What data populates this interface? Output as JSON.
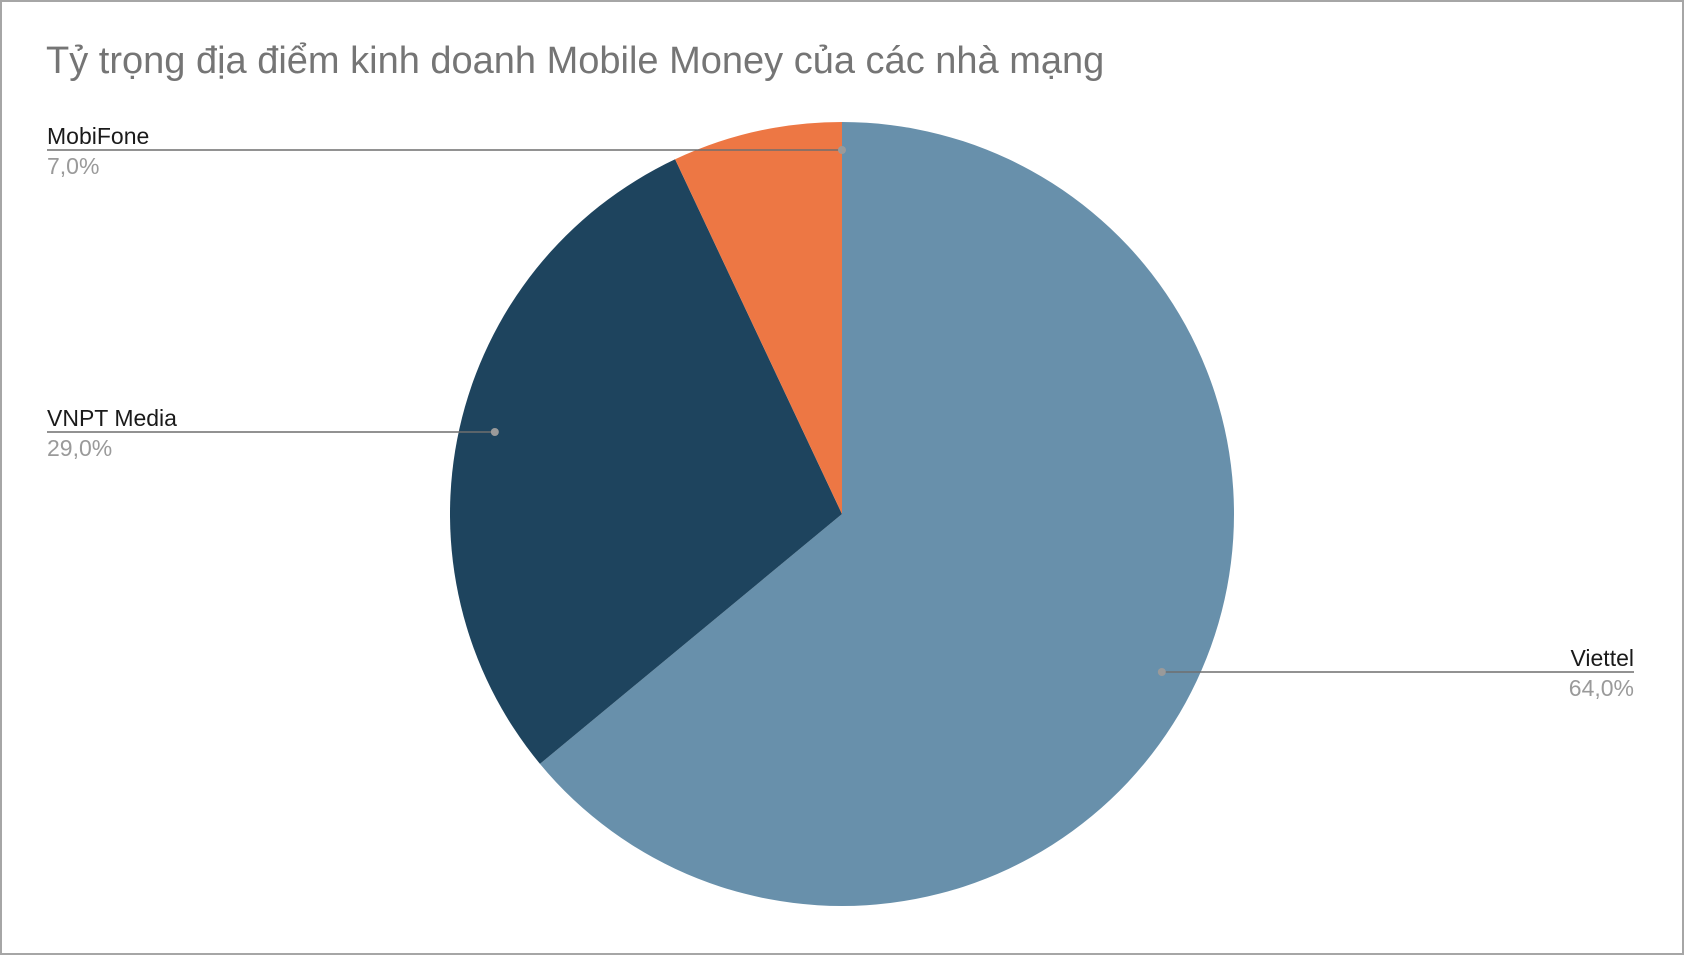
{
  "chart_data": {
    "type": "pie",
    "title": "Tỷ trọng địa điểm kinh doanh Mobile Money của các nhà mạng",
    "slices": [
      {
        "label": "Viettel",
        "value": 64.0,
        "value_label": "64,0%",
        "color": "#6890ab"
      },
      {
        "label": "VNPT Media",
        "value": 29.0,
        "value_label": "29,0%",
        "color": "#1e445e"
      },
      {
        "label": "MobiFone",
        "value": 7.0,
        "value_label": "7,0%",
        "color": "#ed7744"
      }
    ],
    "start_angle": "12 o'clock",
    "direction": "clockwise",
    "legend": "none",
    "label_style": "leader lines"
  }
}
